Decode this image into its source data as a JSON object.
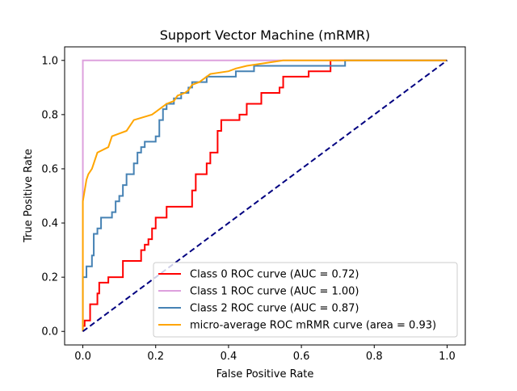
{
  "chart_data": {
    "type": "line",
    "title": "Support Vector Machine (mRMR)",
    "xlabel": "False Positive Rate",
    "ylabel": "True Positive Rate",
    "xlim": [
      -0.05,
      1.05
    ],
    "ylim": [
      -0.05,
      1.05
    ],
    "xticks": [
      0.0,
      0.2,
      0.4,
      0.6,
      0.8,
      1.0
    ],
    "yticks": [
      0.0,
      0.2,
      0.4,
      0.6,
      0.8,
      1.0
    ],
    "xtick_labels": [
      "0.0",
      "0.2",
      "0.4",
      "0.6",
      "0.8",
      "1.0"
    ],
    "ytick_labels": [
      "0.0",
      "0.2",
      "0.4",
      "0.6",
      "0.8",
      "1.0"
    ],
    "grid": false,
    "legend_position": "lower-right",
    "series": [
      {
        "name": "Class 0 ROC curve (AUC = 0.72)",
        "color": "#ff0000",
        "points": [
          [
            0,
            0
          ],
          [
            0,
            0.02
          ],
          [
            0.005,
            0.02
          ],
          [
            0.005,
            0.04
          ],
          [
            0.02,
            0.04
          ],
          [
            0.02,
            0.1
          ],
          [
            0.04,
            0.1
          ],
          [
            0.04,
            0.14
          ],
          [
            0.045,
            0.14
          ],
          [
            0.045,
            0.18
          ],
          [
            0.07,
            0.18
          ],
          [
            0.07,
            0.2
          ],
          [
            0.11,
            0.2
          ],
          [
            0.11,
            0.26
          ],
          [
            0.16,
            0.26
          ],
          [
            0.16,
            0.3
          ],
          [
            0.17,
            0.3
          ],
          [
            0.17,
            0.32
          ],
          [
            0.18,
            0.32
          ],
          [
            0.18,
            0.34
          ],
          [
            0.19,
            0.34
          ],
          [
            0.19,
            0.38
          ],
          [
            0.2,
            0.38
          ],
          [
            0.2,
            0.42
          ],
          [
            0.23,
            0.42
          ],
          [
            0.23,
            0.46
          ],
          [
            0.3,
            0.46
          ],
          [
            0.3,
            0.52
          ],
          [
            0.31,
            0.52
          ],
          [
            0.31,
            0.58
          ],
          [
            0.34,
            0.58
          ],
          [
            0.34,
            0.62
          ],
          [
            0.35,
            0.62
          ],
          [
            0.35,
            0.66
          ],
          [
            0.37,
            0.66
          ],
          [
            0.37,
            0.74
          ],
          [
            0.38,
            0.74
          ],
          [
            0.38,
            0.78
          ],
          [
            0.43,
            0.78
          ],
          [
            0.43,
            0.8
          ],
          [
            0.45,
            0.8
          ],
          [
            0.45,
            0.84
          ],
          [
            0.49,
            0.84
          ],
          [
            0.49,
            0.88
          ],
          [
            0.54,
            0.88
          ],
          [
            0.54,
            0.9
          ],
          [
            0.55,
            0.9
          ],
          [
            0.55,
            0.94
          ],
          [
            0.62,
            0.94
          ],
          [
            0.62,
            0.96
          ],
          [
            0.68,
            0.96
          ],
          [
            0.68,
            0.98
          ],
          [
            0.68,
            1.0
          ],
          [
            1.0,
            1.0
          ]
        ]
      },
      {
        "name": "Class 1 ROC curve (AUC = 1.00)",
        "color": "#dda0dd",
        "points": [
          [
            0,
            0
          ],
          [
            0,
            1.0
          ],
          [
            1.0,
            1.0
          ]
        ]
      },
      {
        "name": "Class 2 ROC curve (AUC = 0.87)",
        "color": "#4682b4",
        "points": [
          [
            0,
            0
          ],
          [
            0,
            0.2
          ],
          [
            0.01,
            0.2
          ],
          [
            0.01,
            0.24
          ],
          [
            0.025,
            0.24
          ],
          [
            0.025,
            0.28
          ],
          [
            0.03,
            0.28
          ],
          [
            0.03,
            0.36
          ],
          [
            0.04,
            0.36
          ],
          [
            0.04,
            0.38
          ],
          [
            0.05,
            0.38
          ],
          [
            0.05,
            0.42
          ],
          [
            0.08,
            0.42
          ],
          [
            0.08,
            0.44
          ],
          [
            0.09,
            0.44
          ],
          [
            0.09,
            0.48
          ],
          [
            0.1,
            0.48
          ],
          [
            0.1,
            0.5
          ],
          [
            0.11,
            0.5
          ],
          [
            0.11,
            0.54
          ],
          [
            0.12,
            0.54
          ],
          [
            0.12,
            0.58
          ],
          [
            0.14,
            0.58
          ],
          [
            0.14,
            0.62
          ],
          [
            0.15,
            0.62
          ],
          [
            0.15,
            0.66
          ],
          [
            0.16,
            0.66
          ],
          [
            0.16,
            0.68
          ],
          [
            0.17,
            0.68
          ],
          [
            0.17,
            0.7
          ],
          [
            0.2,
            0.7
          ],
          [
            0.2,
            0.72
          ],
          [
            0.21,
            0.72
          ],
          [
            0.21,
            0.78
          ],
          [
            0.22,
            0.78
          ],
          [
            0.22,
            0.82
          ],
          [
            0.23,
            0.82
          ],
          [
            0.23,
            0.84
          ],
          [
            0.25,
            0.84
          ],
          [
            0.25,
            0.86
          ],
          [
            0.27,
            0.86
          ],
          [
            0.27,
            0.88
          ],
          [
            0.29,
            0.88
          ],
          [
            0.29,
            0.9
          ],
          [
            0.3,
            0.9
          ],
          [
            0.3,
            0.92
          ],
          [
            0.34,
            0.92
          ],
          [
            0.34,
            0.94
          ],
          [
            0.42,
            0.94
          ],
          [
            0.42,
            0.96
          ],
          [
            0.47,
            0.96
          ],
          [
            0.47,
            0.98
          ],
          [
            0.72,
            0.98
          ],
          [
            0.72,
            1.0
          ],
          [
            1.0,
            1.0
          ]
        ]
      },
      {
        "name": "micro-average ROC mRMR curve (area = 0.93)",
        "color": "#ffa500",
        "points": [
          [
            0,
            0
          ],
          [
            0,
            0.48
          ],
          [
            0.005,
            0.52
          ],
          [
            0.01,
            0.56
          ],
          [
            0.015,
            0.58
          ],
          [
            0.025,
            0.6
          ],
          [
            0.03,
            0.62
          ],
          [
            0.04,
            0.66
          ],
          [
            0.055,
            0.67
          ],
          [
            0.07,
            0.68
          ],
          [
            0.075,
            0.7
          ],
          [
            0.08,
            0.72
          ],
          [
            0.1,
            0.73
          ],
          [
            0.12,
            0.74
          ],
          [
            0.13,
            0.76
          ],
          [
            0.14,
            0.78
          ],
          [
            0.19,
            0.8
          ],
          [
            0.2,
            0.81
          ],
          [
            0.23,
            0.84
          ],
          [
            0.25,
            0.85
          ],
          [
            0.26,
            0.87
          ],
          [
            0.28,
            0.88
          ],
          [
            0.29,
            0.89
          ],
          [
            0.3,
            0.91
          ],
          [
            0.32,
            0.92
          ],
          [
            0.35,
            0.95
          ],
          [
            0.4,
            0.96
          ],
          [
            0.42,
            0.97
          ],
          [
            0.45,
            0.98
          ],
          [
            0.5,
            0.99
          ],
          [
            0.55,
            1.0
          ],
          [
            1.0,
            1.0
          ]
        ]
      },
      {
        "name": "",
        "color": "#000080",
        "dashed": true,
        "points": [
          [
            0,
            0
          ],
          [
            1,
            1
          ]
        ]
      }
    ]
  }
}
